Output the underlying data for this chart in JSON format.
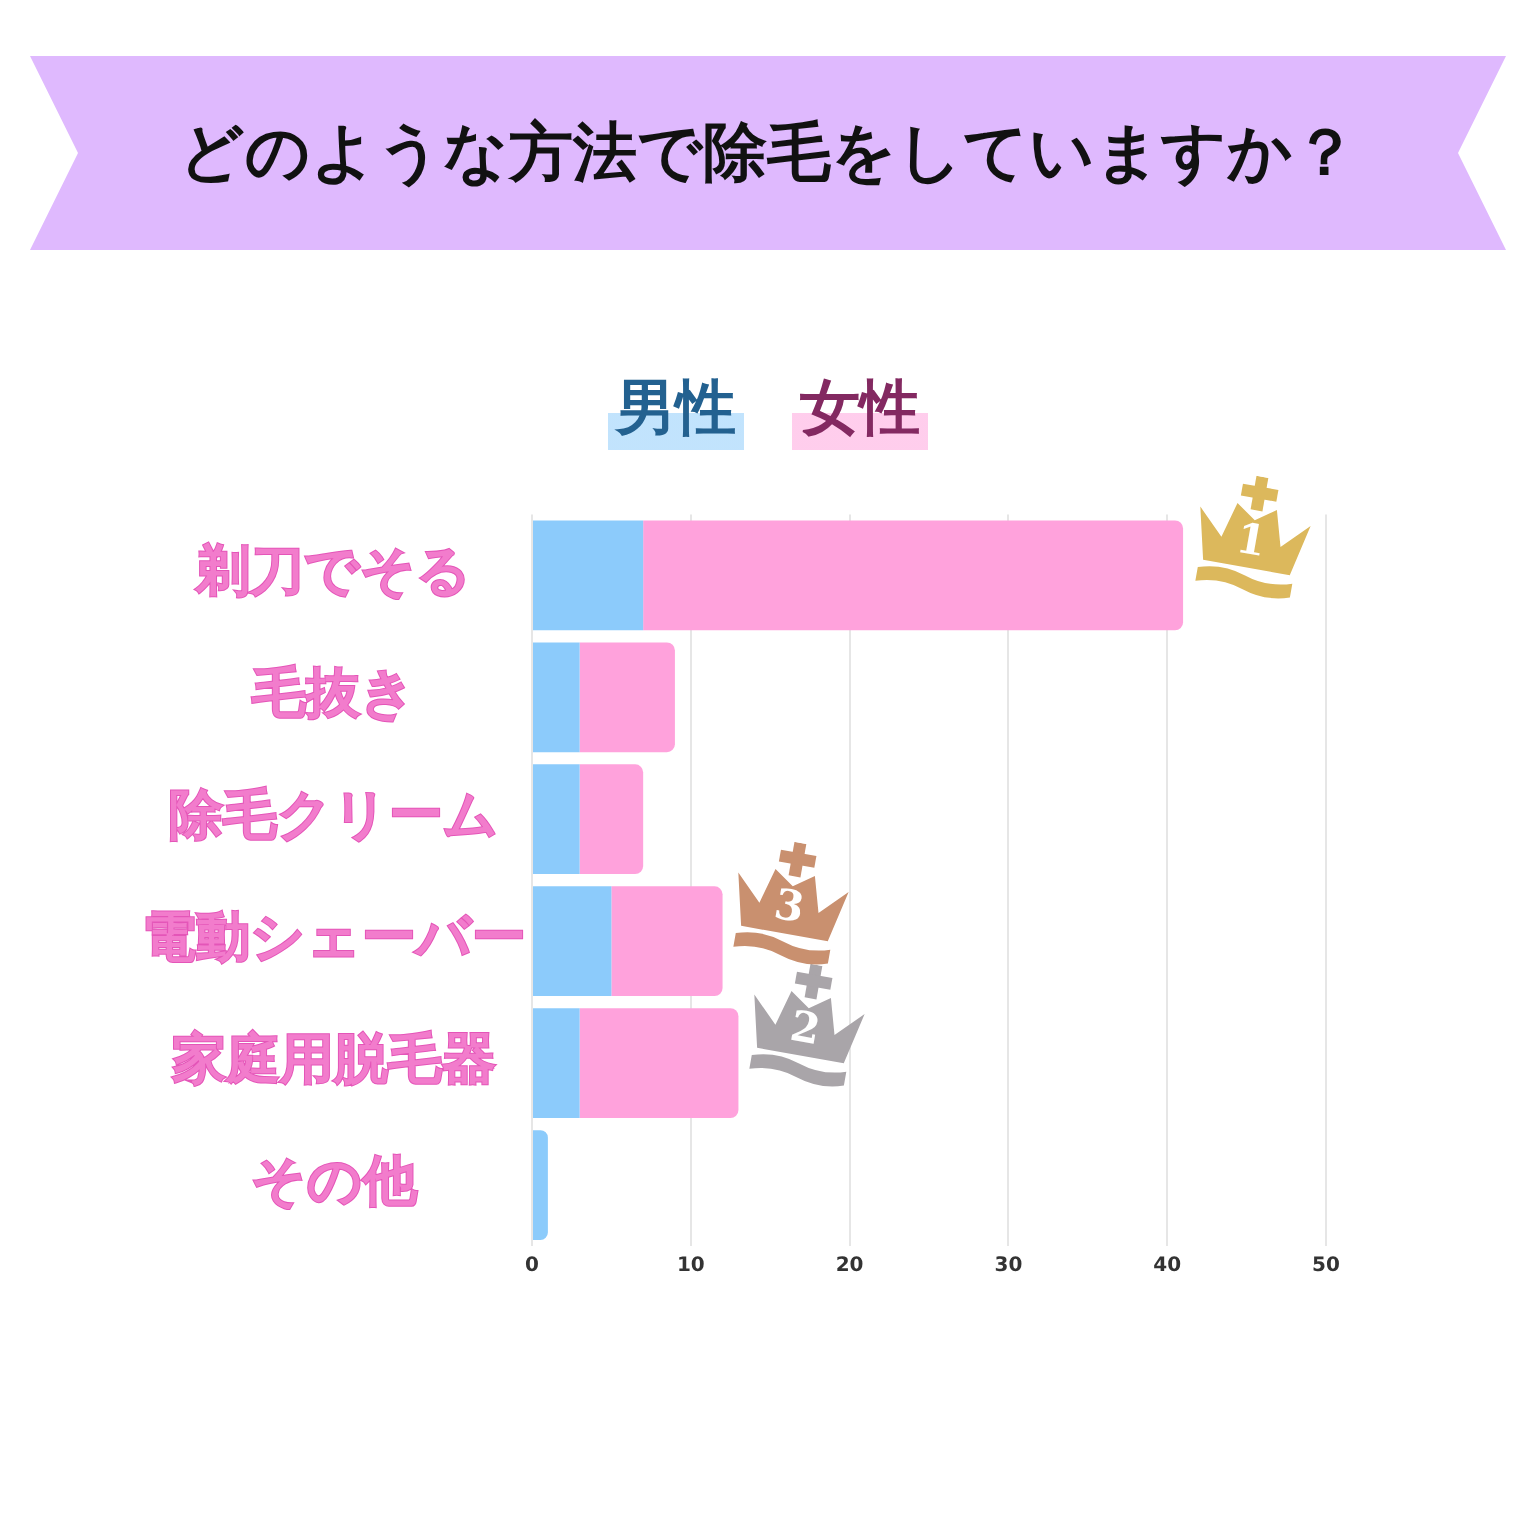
{
  "chart_data": {
    "type": "bar",
    "title": "どのような方法で除毛をしていますか？",
    "orientation": "horizontal",
    "stacked": true,
    "categories": [
      "剃刀でそる",
      "毛抜き",
      "除毛クリーム",
      "電動シェーバー",
      "家庭用脱毛器",
      "その他"
    ],
    "series": [
      {
        "name": "男性",
        "color": "#8ccbfb",
        "values": [
          7,
          3,
          3,
          5,
          3,
          1
        ]
      },
      {
        "name": "女性",
        "color": "#ffa2dc",
        "values": [
          34,
          6,
          4,
          7,
          10,
          0
        ]
      }
    ],
    "xlim": [
      0,
      50
    ],
    "xticks": [
      0,
      10,
      20,
      30,
      40,
      50
    ],
    "grid": "x",
    "legend": "top",
    "annotations": [
      {
        "text": "1",
        "x": 41,
        "y": "剃刀でそる"
      },
      {
        "text": "2",
        "x": 13,
        "y": "家庭用脱毛器"
      },
      {
        "text": "3",
        "x": 12,
        "y": "電動シェーバー"
      }
    ]
  }
}
